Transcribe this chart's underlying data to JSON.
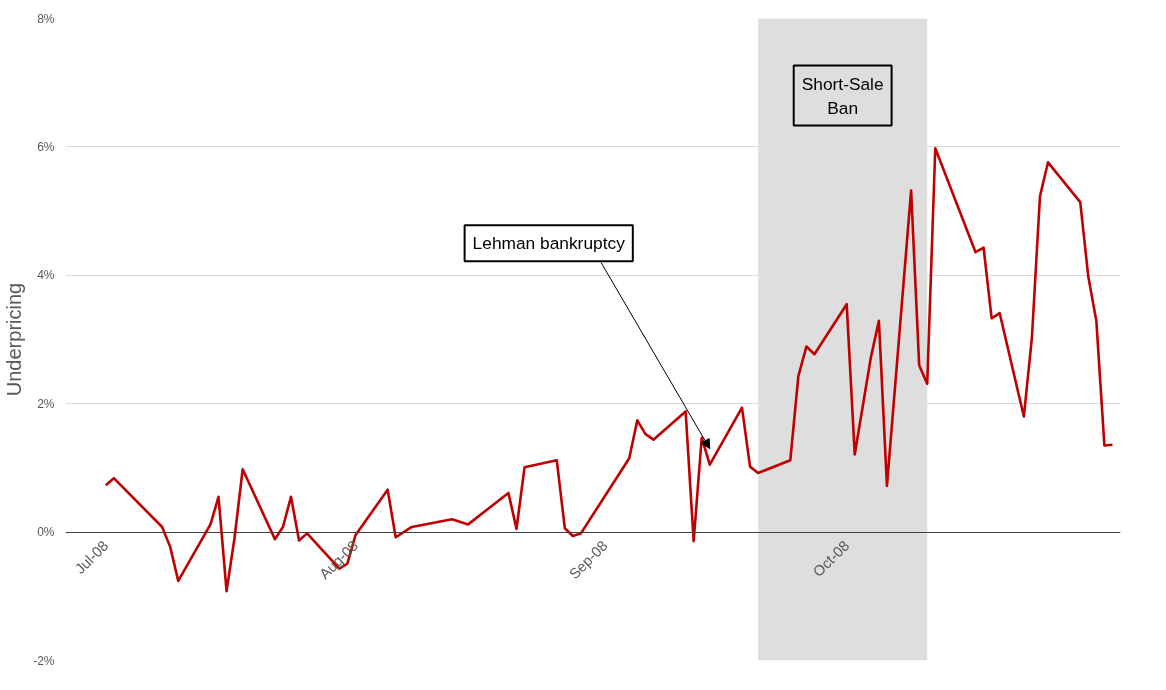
{
  "chart_data": {
    "type": "line",
    "ylabel": "Underpricing",
    "x": [
      "2008-07-01",
      "2008-07-02",
      "2008-07-08",
      "2008-07-09",
      "2008-07-10",
      "2008-07-14",
      "2008-07-15",
      "2008-07-16",
      "2008-07-17",
      "2008-07-18",
      "2008-07-22",
      "2008-07-23",
      "2008-07-24",
      "2008-07-25",
      "2008-07-26",
      "2008-07-30",
      "2008-07-31",
      "2008-08-01",
      "2008-08-05",
      "2008-08-06",
      "2008-08-08",
      "2008-08-13",
      "2008-08-15",
      "2008-08-20",
      "2008-08-21",
      "2008-08-22",
      "2008-08-26",
      "2008-08-27",
      "2008-08-28",
      "2008-08-29",
      "2008-09-04",
      "2008-09-05",
      "2008-09-06",
      "2008-09-07",
      "2008-09-11",
      "2008-09-12",
      "2008-09-13",
      "2008-09-14",
      "2008-09-18",
      "2008-09-19",
      "2008-09-20",
      "2008-09-24",
      "2008-09-25",
      "2008-09-26",
      "2008-09-27",
      "2008-10-01",
      "2008-10-02",
      "2008-10-04",
      "2008-10-05",
      "2008-10-06",
      "2008-10-09",
      "2008-10-10",
      "2008-10-11",
      "2008-10-12",
      "2008-10-17",
      "2008-10-18",
      "2008-10-19",
      "2008-10-20",
      "2008-10-23",
      "2008-10-24",
      "2008-10-25",
      "2008-10-26",
      "2008-10-30",
      "2008-10-31",
      "2008-11-01",
      "2008-11-02",
      "2008-11-03"
    ],
    "series": [
      {
        "color": "#c00000",
        "values": [
          0.73,
          0.84,
          0.08,
          -0.23,
          -0.76,
          0.12,
          0.55,
          -0.92,
          -0.08,
          0.98,
          -0.11,
          0.08,
          0.55,
          -0.13,
          -0.02,
          -0.57,
          -0.49,
          -0.05,
          0.66,
          -0.08,
          0.08,
          0.2,
          0.12,
          0.61,
          0.05,
          1.01,
          1.12,
          0.06,
          -0.06,
          -0.02,
          1.15,
          1.74,
          1.53,
          1.44,
          1.88,
          -0.14,
          1.47,
          1.05,
          1.94,
          1.02,
          0.92,
          1.12,
          2.43,
          2.89,
          2.77,
          3.55,
          1.21,
          2.72,
          3.29,
          0.72,
          5.32,
          2.6,
          2.31,
          5.98,
          4.36,
          4.43,
          3.33,
          3.41,
          1.8,
          3.03,
          5.23,
          5.76,
          5.14,
          3.98,
          3.29,
          1.35,
          1.36
        ]
      }
    ],
    "xlim": [
      "2008-06-26",
      "2008-11-04"
    ],
    "xticks": [
      {
        "value": "2008-07-01",
        "label": "Jul-08"
      },
      {
        "value": "2008-08-01",
        "label": "Aug-08"
      },
      {
        "value": "2008-09-01",
        "label": "Sep-08"
      },
      {
        "value": "2008-10-01",
        "label": "Oct-08"
      }
    ],
    "ylim": [
      -2,
      8
    ],
    "yticks": [
      {
        "value": -2,
        "label": "-2%"
      },
      {
        "value": 0,
        "label": "0%"
      },
      {
        "value": 2,
        "label": "2%"
      },
      {
        "value": 4,
        "label": "4%"
      },
      {
        "value": 6,
        "label": "6%"
      },
      {
        "value": 8,
        "label": "8%"
      }
    ],
    "bands": [
      {
        "axis": "x",
        "from": "2008-09-20",
        "to": "2008-10-11",
        "label": "Short-Sale Ban",
        "color": "#dedede"
      }
    ],
    "annotations": [
      {
        "text": "Lehman bankruptcy",
        "x": "2008-09-14",
        "y": 1.3
      }
    ],
    "grid": "y",
    "marker": "none",
    "line_style": "solid"
  }
}
